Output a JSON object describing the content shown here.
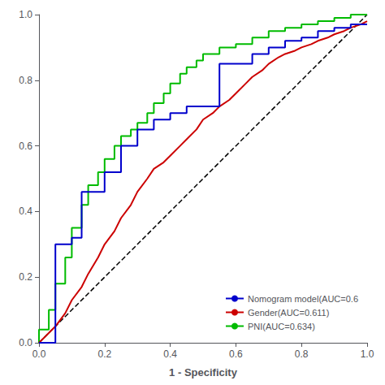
{
  "chart_data": {
    "type": "line",
    "xlabel": "1 - Specificity",
    "xlim": [
      0.0,
      1.0
    ],
    "ylim": [
      0.0,
      1.0
    ],
    "xticks": [
      {
        "value": 0.0,
        "label": "0.0"
      },
      0.2,
      0.4,
      0.6,
      0.8,
      {
        "value": 1.0,
        "label": "1.0"
      }
    ],
    "yticks": [
      {
        "value": 0.0,
        "label": "0.0"
      },
      0.2,
      0.4,
      0.6,
      0.8,
      {
        "value": 1.0,
        "label": "1.0"
      }
    ],
    "grid": false,
    "legend": "lower right",
    "series": [
      {
        "name": "Nomogram model(AUC=0.6",
        "color": "#0000CC",
        "x": [
          0.0,
          0.0,
          0.05,
          0.05,
          0.08,
          0.08,
          0.1,
          0.1,
          0.13,
          0.13,
          0.15,
          0.15,
          0.18,
          0.18,
          0.2,
          0.2,
          0.23,
          0.23,
          0.25,
          0.25,
          0.28,
          0.28,
          0.3,
          0.3,
          0.33,
          0.33,
          0.35,
          0.35,
          0.38,
          0.38,
          0.4,
          0.4,
          0.43,
          0.43,
          0.45,
          0.45,
          0.48,
          0.48,
          0.5,
          0.5,
          0.55,
          0.55,
          0.6,
          0.6,
          0.65,
          0.65,
          0.7,
          0.7,
          0.75,
          0.75,
          0.8,
          0.8,
          0.85,
          0.85,
          0.9,
          0.9,
          0.95,
          0.95,
          1.0
        ],
        "values": [
          0.0,
          0.0,
          0.0,
          0.3,
          0.3,
          0.3,
          0.3,
          0.32,
          0.32,
          0.46,
          0.46,
          0.46,
          0.46,
          0.46,
          0.46,
          0.52,
          0.52,
          0.52,
          0.52,
          0.6,
          0.6,
          0.6,
          0.6,
          0.65,
          0.65,
          0.65,
          0.65,
          0.68,
          0.68,
          0.68,
          0.68,
          0.7,
          0.7,
          0.7,
          0.7,
          0.72,
          0.72,
          0.72,
          0.72,
          0.72,
          0.72,
          0.85,
          0.85,
          0.85,
          0.85,
          0.88,
          0.88,
          0.9,
          0.9,
          0.92,
          0.92,
          0.93,
          0.93,
          0.95,
          0.95,
          0.96,
          0.96,
          0.97,
          0.97
        ]
      },
      {
        "name": "Gender(AUC=0.611)",
        "color": "#CC0000",
        "x": [
          0.0,
          0.02,
          0.05,
          0.08,
          0.1,
          0.13,
          0.15,
          0.18,
          0.2,
          0.23,
          0.25,
          0.28,
          0.3,
          0.33,
          0.35,
          0.38,
          0.4,
          0.43,
          0.45,
          0.48,
          0.5,
          0.53,
          0.55,
          0.58,
          0.6,
          0.63,
          0.65,
          0.68,
          0.7,
          0.73,
          0.75,
          0.78,
          0.8,
          0.83,
          0.85,
          0.88,
          0.9,
          0.93,
          0.95,
          0.98,
          1.0
        ],
        "values": [
          0.0,
          0.02,
          0.05,
          0.09,
          0.13,
          0.17,
          0.21,
          0.26,
          0.3,
          0.34,
          0.38,
          0.42,
          0.46,
          0.5,
          0.53,
          0.55,
          0.57,
          0.6,
          0.62,
          0.65,
          0.68,
          0.7,
          0.72,
          0.74,
          0.76,
          0.79,
          0.81,
          0.83,
          0.85,
          0.87,
          0.88,
          0.89,
          0.9,
          0.91,
          0.92,
          0.93,
          0.94,
          0.95,
          0.96,
          0.97,
          0.98
        ]
      },
      {
        "name": "PNI(AUC=0.634)",
        "color": "#00BB00",
        "x": [
          0.0,
          0.0,
          0.03,
          0.03,
          0.05,
          0.05,
          0.08,
          0.08,
          0.1,
          0.1,
          0.13,
          0.13,
          0.15,
          0.15,
          0.18,
          0.18,
          0.2,
          0.2,
          0.23,
          0.23,
          0.25,
          0.25,
          0.28,
          0.28,
          0.3,
          0.3,
          0.33,
          0.33,
          0.35,
          0.35,
          0.38,
          0.38,
          0.4,
          0.4,
          0.43,
          0.43,
          0.45,
          0.45,
          0.48,
          0.48,
          0.5,
          0.5,
          0.55,
          0.55,
          0.6,
          0.6,
          0.65,
          0.65,
          0.7,
          0.7,
          0.75,
          0.75,
          0.8,
          0.8,
          0.85,
          0.85,
          0.9,
          0.9,
          0.95,
          0.95,
          1.0
        ],
        "values": [
          0.0,
          0.04,
          0.04,
          0.1,
          0.1,
          0.18,
          0.18,
          0.26,
          0.26,
          0.35,
          0.35,
          0.42,
          0.42,
          0.48,
          0.48,
          0.52,
          0.52,
          0.56,
          0.56,
          0.6,
          0.6,
          0.63,
          0.63,
          0.65,
          0.65,
          0.67,
          0.67,
          0.7,
          0.7,
          0.73,
          0.73,
          0.76,
          0.76,
          0.79,
          0.79,
          0.82,
          0.82,
          0.84,
          0.84,
          0.86,
          0.86,
          0.88,
          0.88,
          0.9,
          0.9,
          0.91,
          0.91,
          0.93,
          0.93,
          0.95,
          0.95,
          0.96,
          0.96,
          0.97,
          0.97,
          0.98,
          0.98,
          0.99,
          0.99,
          1.0,
          1.0
        ]
      },
      {
        "color": "#000000",
        "line_style": "dashed",
        "x": [
          0,
          1
        ],
        "values": [
          0,
          1
        ]
      }
    ]
  }
}
